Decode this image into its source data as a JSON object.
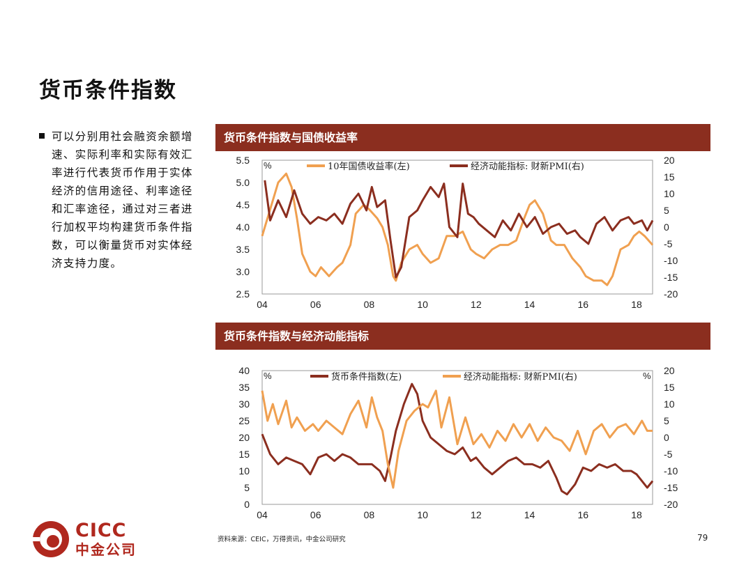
{
  "page": {
    "title": "货币条件指数",
    "bullet": "可以分别用社会融资余额增速、实际利率和实际有效汇率进行代表货币作用于实体经济的信用途径、利率途径和汇率途径，通过对三者进行加权平均构建货币条件指数，可以衡量货币对实体经济支持力度。",
    "source": "资料来源：CEIC，万得资讯，中金公司研究",
    "page_number": "79",
    "logo_text": "CICC",
    "logo_cn": "中金公司"
  },
  "colors": {
    "dark_red": "#8b2e1f",
    "orange": "#f0a050",
    "brand": "#b0281e"
  },
  "chart_data": [
    {
      "type": "line",
      "title": "货币条件指数与国债收益率",
      "x_ticks": [
        "04",
        "06",
        "08",
        "10",
        "12",
        "14",
        "16",
        "18"
      ],
      "x_range": [
        2004.0,
        2018.6
      ],
      "left_axis": {
        "unit": "%",
        "ylim": [
          2.5,
          5.5
        ],
        "ticks": [
          "5.5",
          "5.0",
          "4.5",
          "4.0",
          "3.5",
          "3.0",
          "2.5"
        ]
      },
      "right_axis": {
        "unit": "",
        "ylim": [
          -20,
          20
        ],
        "ticks": [
          "20",
          "15",
          "10",
          "5",
          "0",
          "-5",
          "-10",
          "-15",
          "-20"
        ]
      },
      "series": [
        {
          "name": "10年国债收益率(左)",
          "axis": "left",
          "color": "#f0a050",
          "x": [
            2004.0,
            2004.3,
            2004.6,
            2004.9,
            2005.1,
            2005.3,
            2005.5,
            2005.8,
            2006.0,
            2006.2,
            2006.5,
            2006.8,
            2007.0,
            2007.3,
            2007.5,
            2007.8,
            2008.0,
            2008.3,
            2008.5,
            2008.7,
            2008.9,
            2009.0,
            2009.2,
            2009.5,
            2009.8,
            2010.0,
            2010.3,
            2010.6,
            2010.9,
            2011.2,
            2011.5,
            2011.8,
            2012.0,
            2012.3,
            2012.6,
            2012.9,
            2013.2,
            2013.5,
            2013.8,
            2014.0,
            2014.2,
            2014.5,
            2014.8,
            2015.0,
            2015.3,
            2015.6,
            2015.9,
            2016.1,
            2016.4,
            2016.7,
            2016.9,
            2017.1,
            2017.4,
            2017.7,
            2017.9,
            2018.1,
            2018.3,
            2018.6
          ],
          "y": [
            3.8,
            4.4,
            5.0,
            5.2,
            4.9,
            4.2,
            3.4,
            3.0,
            2.9,
            3.1,
            2.9,
            3.1,
            3.2,
            3.6,
            4.3,
            4.5,
            4.4,
            4.2,
            4.0,
            3.6,
            2.9,
            2.8,
            3.2,
            3.5,
            3.6,
            3.4,
            3.2,
            3.3,
            3.8,
            3.8,
            3.9,
            3.5,
            3.4,
            3.3,
            3.5,
            3.6,
            3.6,
            3.7,
            4.2,
            4.5,
            4.6,
            4.3,
            3.7,
            3.6,
            3.6,
            3.3,
            3.1,
            2.9,
            2.8,
            2.8,
            2.7,
            2.9,
            3.5,
            3.6,
            3.8,
            3.9,
            3.8,
            3.6
          ]
        },
        {
          "name": "经济动能指标: 财新PMI(右)",
          "axis": "right",
          "color": "#8b2e1f",
          "x": [
            2004.1,
            2004.3,
            2004.6,
            2004.9,
            2005.2,
            2005.5,
            2005.8,
            2006.1,
            2006.4,
            2006.7,
            2007.0,
            2007.3,
            2007.6,
            2007.9,
            2008.1,
            2008.3,
            2008.6,
            2008.8,
            2009.0,
            2009.2,
            2009.5,
            2009.8,
            2010.0,
            2010.3,
            2010.6,
            2010.8,
            2011.0,
            2011.3,
            2011.5,
            2011.7,
            2011.9,
            2012.1,
            2012.4,
            2012.7,
            2013.0,
            2013.3,
            2013.6,
            2013.9,
            2014.2,
            2014.5,
            2014.8,
            2015.1,
            2015.4,
            2015.7,
            2015.9,
            2016.2,
            2016.5,
            2016.8,
            2017.1,
            2017.4,
            2017.7,
            2017.9,
            2018.2,
            2018.4,
            2018.6
          ],
          "y": [
            14,
            2,
            8,
            3,
            11,
            4,
            1,
            3,
            2,
            4,
            1,
            7,
            10,
            5,
            12,
            6,
            8,
            -4,
            -15,
            -12,
            3,
            5,
            8,
            12,
            9,
            13,
            0,
            -3,
            13,
            4,
            3,
            1,
            -1,
            -3,
            2,
            -1,
            4,
            0,
            3,
            -2,
            0,
            1,
            -2,
            -1,
            -3,
            -5,
            1,
            3,
            -1,
            2,
            3,
            1,
            2,
            -1,
            2
          ]
        }
      ]
    },
    {
      "type": "line",
      "title": "货币条件指数与经济动能指标",
      "x_ticks": [
        "04",
        "06",
        "08",
        "10",
        "12",
        "14",
        "16",
        "18"
      ],
      "x_range": [
        2004.0,
        2018.6
      ],
      "left_axis": {
        "unit": "%",
        "ylim": [
          0,
          40
        ],
        "ticks": [
          "40",
          "35",
          "30",
          "25",
          "20",
          "15",
          "10",
          "5",
          "0"
        ]
      },
      "right_axis": {
        "unit": "%",
        "ylim": [
          -20,
          20
        ],
        "ticks": [
          "20",
          "15",
          "10",
          "5",
          "0",
          "-5",
          "-10",
          "-15",
          "-20"
        ]
      },
      "series": [
        {
          "name": "货币条件指数(左)",
          "axis": "left",
          "color": "#8b2e1f",
          "x": [
            2004.0,
            2004.3,
            2004.6,
            2004.9,
            2005.2,
            2005.5,
            2005.8,
            2006.1,
            2006.4,
            2006.7,
            2007.0,
            2007.3,
            2007.6,
            2007.9,
            2008.1,
            2008.4,
            2008.6,
            2008.8,
            2009.0,
            2009.3,
            2009.6,
            2009.8,
            2010.0,
            2010.3,
            2010.6,
            2010.9,
            2011.2,
            2011.5,
            2011.8,
            2012.0,
            2012.3,
            2012.6,
            2012.9,
            2013.2,
            2013.5,
            2013.8,
            2014.1,
            2014.4,
            2014.7,
            2015.0,
            2015.2,
            2015.4,
            2015.7,
            2016.0,
            2016.3,
            2016.6,
            2016.9,
            2017.2,
            2017.5,
            2017.8,
            2018.0,
            2018.2,
            2018.4,
            2018.6
          ],
          "y": [
            21,
            15,
            12,
            14,
            13,
            12,
            9,
            14,
            15,
            13,
            15,
            14,
            12,
            12,
            12,
            10,
            7,
            14,
            22,
            30,
            36,
            33,
            25,
            20,
            18,
            16,
            15,
            17,
            13,
            14,
            11,
            9,
            11,
            13,
            14,
            12,
            12,
            11,
            13,
            8,
            4,
            3,
            6,
            11,
            10,
            12,
            11,
            12,
            10,
            10,
            9,
            7,
            5,
            7
          ]
        },
        {
          "name": "经济动能指标: 财新PMI(右)",
          "axis": "right",
          "color": "#f0a050",
          "x": [
            2004.0,
            2004.2,
            2004.4,
            2004.6,
            2004.9,
            2005.1,
            2005.3,
            2005.6,
            2005.9,
            2006.1,
            2006.4,
            2006.7,
            2007.0,
            2007.3,
            2007.6,
            2007.9,
            2008.1,
            2008.3,
            2008.5,
            2008.7,
            2008.9,
            2009.1,
            2009.4,
            2009.7,
            2010.0,
            2010.2,
            2010.5,
            2010.7,
            2011.0,
            2011.3,
            2011.6,
            2011.9,
            2012.2,
            2012.5,
            2012.8,
            2013.1,
            2013.4,
            2013.7,
            2014.0,
            2014.3,
            2014.6,
            2014.9,
            2015.2,
            2015.5,
            2015.8,
            2016.1,
            2016.4,
            2016.7,
            2017.0,
            2017.3,
            2017.6,
            2017.9,
            2018.2,
            2018.4,
            2018.6
          ],
          "y": [
            14,
            5,
            10,
            4,
            11,
            3,
            6,
            2,
            4,
            2,
            5,
            3,
            1,
            7,
            11,
            3,
            12,
            6,
            2,
            -8,
            -15,
            -4,
            5,
            8,
            10,
            9,
            14,
            3,
            12,
            -2,
            6,
            -2,
            1,
            -3,
            2,
            -1,
            4,
            0,
            4,
            -1,
            3,
            0,
            -1,
            -4,
            2,
            -5,
            2,
            4,
            0,
            3,
            4,
            1,
            5,
            2,
            2
          ]
        }
      ]
    }
  ]
}
